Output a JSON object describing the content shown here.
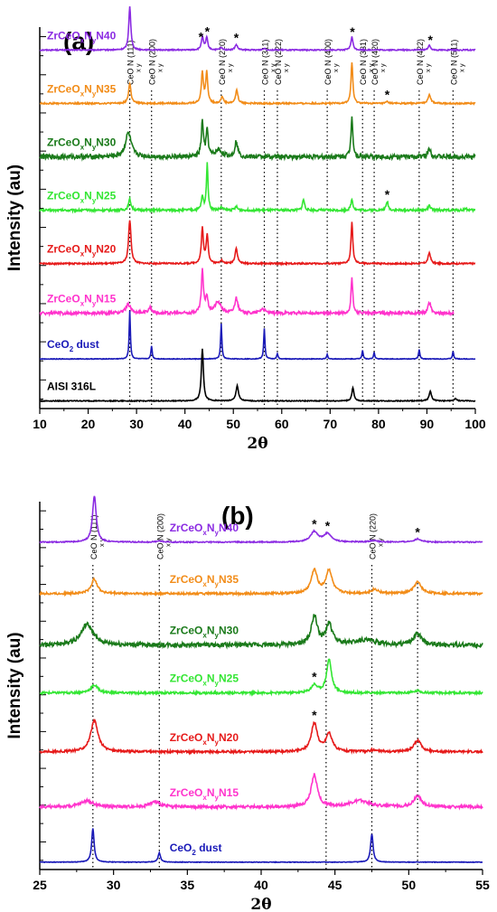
{
  "chart_data": [
    {
      "type": "line",
      "panel_label": "(a)",
      "xlabel": "2θ",
      "ylabel": "Intensity (au)",
      "xlim": [
        10,
        100
      ],
      "xticks": [
        "10",
        "20",
        "30",
        "40",
        "50",
        "60",
        "70",
        "80",
        "90",
        "100"
      ],
      "reference_lines": [
        {
          "x": 28.6,
          "label": "CeO N (111)",
          "sub": "x y"
        },
        {
          "x": 33.1,
          "label": "CeO N (200)",
          "sub": "x y"
        },
        {
          "x": 47.5,
          "label": "CeO N (220)",
          "sub": "x y"
        },
        {
          "x": 56.4,
          "label": "CeO N (311)",
          "sub": "x y"
        },
        {
          "x": 59.1,
          "label": "CeO N (222)",
          "sub": "x y"
        },
        {
          "x": 69.4,
          "label": "CeO N (400)",
          "sub": "x y"
        },
        {
          "x": 76.7,
          "label": "CeO N (331)",
          "sub": "x y"
        },
        {
          "x": 79.1,
          "label": "CeO N (420)",
          "sub": "x y"
        },
        {
          "x": 88.4,
          "label": "CeO N (422)",
          "sub": "x y"
        },
        {
          "x": 95.4,
          "label": "CeO N (511)",
          "sub": "x y"
        }
      ],
      "series": [
        {
          "name": "ZrCeOxNyN40",
          "label_parts": [
            "ZrCeO",
            "x",
            "N",
            "y",
            "N40"
          ],
          "color": "#8b2be2",
          "baseline": 0.94,
          "xmax": 100,
          "noise": 0.0015,
          "peaks": [
            [
              28.6,
              1.0,
              0.25
            ],
            [
              43.6,
              0.3,
              0.25
            ],
            [
              44.5,
              0.28,
              0.25
            ],
            [
              50.6,
              0.12,
              0.3
            ],
            [
              47.5,
              0.05,
              0.3
            ],
            [
              56.4,
              0.04,
              0.3
            ],
            [
              74.5,
              0.3,
              0.25
            ],
            [
              90.5,
              0.1,
              0.3
            ]
          ],
          "stars": [
            43.3,
            44.6,
            50.6,
            74.6,
            90.7
          ]
        },
        {
          "name": "ZrCeOxNyN35",
          "label_parts": [
            "ZrCeO",
            "x",
            "N",
            "y",
            "N35"
          ],
          "color": "#f28c18",
          "baseline": 0.8,
          "xmax": 100,
          "noise": 0.002,
          "peaks": [
            [
              28.6,
              0.45,
              0.3
            ],
            [
              43.6,
              0.7,
              0.25
            ],
            [
              44.5,
              0.7,
              0.25
            ],
            [
              47.7,
              0.15,
              0.3
            ],
            [
              50.7,
              0.3,
              0.3
            ],
            [
              74.5,
              0.95,
              0.22
            ],
            [
              81.8,
              0.04,
              0.3
            ],
            [
              90.5,
              0.2,
              0.35
            ]
          ],
          "stars": [
            81.8
          ]
        },
        {
          "name": "ZrCeOxNyN30",
          "label_parts": [
            "ZrCeO",
            "x",
            "N",
            "y",
            "N30"
          ],
          "color": "#1a7a1a",
          "baseline": 0.66,
          "xmax": 100,
          "noise": 0.006,
          "peaks": [
            [
              28.3,
              0.55,
              0.7
            ],
            [
              43.6,
              0.8,
              0.25
            ],
            [
              44.6,
              0.6,
              0.25
            ],
            [
              47.0,
              0.15,
              0.8
            ],
            [
              50.6,
              0.35,
              0.35
            ],
            [
              74.5,
              0.95,
              0.22
            ],
            [
              90.5,
              0.2,
              0.35
            ]
          ],
          "stars": []
        },
        {
          "name": "ZrCeOxNyN25",
          "label_parts": [
            "ZrCeO",
            "x",
            "N",
            "y",
            "N25"
          ],
          "color": "#33e633",
          "baseline": 0.52,
          "xmax": 100,
          "noise": 0.003,
          "peaks": [
            [
              28.6,
              0.25,
              0.3
            ],
            [
              43.6,
              0.3,
              0.25
            ],
            [
              44.6,
              1.05,
              0.2
            ],
            [
              47.5,
              0.06,
              0.3
            ],
            [
              50.6,
              0.08,
              0.3
            ],
            [
              64.5,
              0.25,
              0.25
            ],
            [
              74.5,
              0.25,
              0.25
            ],
            [
              81.8,
              0.2,
              0.25
            ],
            [
              90.5,
              0.1,
              0.3
            ],
            [
              98.0,
              0.04,
              0.3
            ]
          ],
          "stars": [
            81.8
          ]
        },
        {
          "name": "ZrCeOxNyN20",
          "label_parts": [
            "ZrCeO",
            "x",
            "N",
            "y",
            "N20"
          ],
          "color": "#e61a1a",
          "baseline": 0.38,
          "xmax": 100,
          "noise": 0.002,
          "peaks": [
            [
              28.6,
              1.0,
              0.3
            ],
            [
              43.6,
              0.8,
              0.25
            ],
            [
              44.6,
              0.65,
              0.25
            ],
            [
              47.5,
              0.08,
              0.3
            ],
            [
              50.6,
              0.35,
              0.3
            ],
            [
              74.5,
              0.95,
              0.22
            ],
            [
              90.5,
              0.25,
              0.3
            ]
          ],
          "stars": []
        },
        {
          "name": "ZrCeOxNyN15",
          "label_parts": [
            "ZrCeO",
            "x",
            "N",
            "y",
            "N15"
          ],
          "color": "#ff33cc",
          "baseline": 0.25,
          "xmax": 95.5,
          "noise": 0.004,
          "peaks": [
            [
              28.3,
              0.2,
              0.6
            ],
            [
              32.8,
              0.12,
              0.5
            ],
            [
              43.6,
              0.95,
              0.25
            ],
            [
              44.5,
              0.35,
              0.3
            ],
            [
              46.8,
              0.25,
              0.8
            ],
            [
              50.6,
              0.35,
              0.35
            ],
            [
              56.0,
              0.1,
              0.6
            ],
            [
              74.5,
              0.8,
              0.22
            ],
            [
              90.5,
              0.25,
              0.35
            ]
          ],
          "stars": []
        },
        {
          "name": "CeO2 dust",
          "label_parts": [
            "CeO",
            "2",
            " dust"
          ],
          "color": "#1a1ab8",
          "baseline": 0.13,
          "xmax": 100,
          "noise": 0.0008,
          "peaks": [
            [
              28.6,
              1.1,
              0.15
            ],
            [
              33.1,
              0.3,
              0.15
            ],
            [
              47.5,
              0.8,
              0.15
            ],
            [
              56.4,
              0.7,
              0.15
            ],
            [
              59.1,
              0.12,
              0.15
            ],
            [
              69.4,
              0.1,
              0.15
            ],
            [
              76.7,
              0.2,
              0.15
            ],
            [
              79.1,
              0.15,
              0.15
            ],
            [
              88.4,
              0.22,
              0.15
            ],
            [
              95.4,
              0.17,
              0.15
            ]
          ],
          "stars": []
        },
        {
          "name": "AISI 316L",
          "label_parts": [
            "AISI 316L"
          ],
          "color": "#000000",
          "baseline": 0.02,
          "xmax": 100,
          "noise": 0.0012,
          "peaks": [
            [
              43.6,
              1.2,
              0.25
            ],
            [
              50.8,
              0.35,
              0.3
            ],
            [
              74.7,
              0.3,
              0.25
            ],
            [
              90.7,
              0.22,
              0.3
            ],
            [
              95.9,
              0.05,
              0.3
            ]
          ],
          "stars": []
        }
      ]
    },
    {
      "type": "line",
      "panel_label": "(b)",
      "xlabel": "2θ",
      "ylabel": "Intensity (au)",
      "xlim": [
        25,
        55
      ],
      "xticks": [
        "25",
        "30",
        "35",
        "40",
        "45",
        "50",
        "55"
      ],
      "reference_lines": [
        {
          "x": 28.6,
          "label": "CeO N (111)",
          "sub": "x y"
        },
        {
          "x": 33.1,
          "label": "CeO N (200)",
          "sub": "x y"
        },
        {
          "x": 47.5,
          "label": "CeO N (220)",
          "sub": "x y"
        }
      ],
      "extra_lines": [
        44.4,
        50.6
      ],
      "series": [
        {
          "name": "ZrCeOxNyN40",
          "label_parts": [
            "ZrCeO",
            "x",
            "N",
            "y",
            "N40"
          ],
          "color": "#8b2be2",
          "baseline": 0.89,
          "xmax": 55,
          "noise": 0.0015,
          "peaks": [
            [
              28.7,
              0.9,
              0.15
            ],
            [
              33.1,
              0.02,
              0.25
            ],
            [
              43.6,
              0.2,
              0.3
            ],
            [
              44.5,
              0.16,
              0.3
            ],
            [
              47.6,
              0.03,
              0.3
            ],
            [
              50.6,
              0.06,
              0.3
            ]
          ],
          "stars": [
            43.6,
            44.5,
            50.6
          ]
        },
        {
          "name": "ZrCeOxNyN35",
          "label_parts": [
            "ZrCeO",
            "x",
            "N",
            "y",
            "N35"
          ],
          "color": "#f28c18",
          "baseline": 0.75,
          "xmax": 55,
          "noise": 0.003,
          "peaks": [
            [
              28.7,
              0.28,
              0.25
            ],
            [
              43.6,
              0.45,
              0.25
            ],
            [
              44.6,
              0.45,
              0.25
            ],
            [
              47.7,
              0.08,
              0.3
            ],
            [
              50.6,
              0.22,
              0.3
            ]
          ],
          "stars": []
        },
        {
          "name": "ZrCeOxNyN30",
          "label_parts": [
            "ZrCeO",
            "x",
            "N",
            "y",
            "N30"
          ],
          "color": "#1a7a1a",
          "baseline": 0.61,
          "xmax": 55,
          "noise": 0.006,
          "peaks": [
            [
              28.2,
              0.4,
              0.5
            ],
            [
              43.6,
              0.55,
              0.25
            ],
            [
              44.6,
              0.4,
              0.25
            ],
            [
              47.0,
              0.1,
              0.9
            ],
            [
              50.6,
              0.22,
              0.3
            ]
          ],
          "stars": []
        },
        {
          "name": "ZrCeOxNyN25",
          "label_parts": [
            "ZrCeO",
            "x",
            "N",
            "y",
            "N25"
          ],
          "color": "#33e633",
          "baseline": 0.48,
          "xmax": 55,
          "noise": 0.003,
          "peaks": [
            [
              28.7,
              0.15,
              0.3
            ],
            [
              43.6,
              0.15,
              0.25
            ],
            [
              44.6,
              0.65,
              0.2
            ],
            [
              50.6,
              0.04,
              0.3
            ]
          ],
          "stars": [
            43.6
          ]
        },
        {
          "name": "ZrCeOxNyN20",
          "label_parts": [
            "ZrCeO",
            "x",
            "N",
            "y",
            "N20"
          ],
          "color": "#e61a1a",
          "baseline": 0.32,
          "xmax": 55,
          "noise": 0.003,
          "peaks": [
            [
              28.7,
              0.6,
              0.3
            ],
            [
              43.6,
              0.55,
              0.25
            ],
            [
              44.6,
              0.35,
              0.25
            ],
            [
              47.6,
              0.03,
              0.3
            ],
            [
              50.6,
              0.22,
              0.3
            ]
          ],
          "stars": [
            43.6
          ]
        },
        {
          "name": "ZrCeOxNyN15",
          "label_parts": [
            "ZrCeO",
            "x",
            "N",
            "y",
            "N15"
          ],
          "color": "#ff33cc",
          "baseline": 0.17,
          "xmax": 55,
          "noise": 0.004,
          "peaks": [
            [
              28.2,
              0.12,
              0.5
            ],
            [
              32.8,
              0.1,
              0.4
            ],
            [
              43.6,
              0.62,
              0.25
            ],
            [
              46.7,
              0.12,
              0.8
            ],
            [
              50.6,
              0.22,
              0.3
            ]
          ],
          "stars": []
        },
        {
          "name": "CeO2 dust",
          "label_parts": [
            "CeO",
            "2",
            " dust"
          ],
          "color": "#1a1ab8",
          "baseline": 0.02,
          "xmax": 55,
          "noise": 0.0008,
          "peaks": [
            [
              28.6,
              0.65,
              0.1
            ],
            [
              33.1,
              0.18,
              0.1
            ],
            [
              47.5,
              0.55,
              0.1
            ]
          ],
          "stars": []
        }
      ]
    }
  ]
}
